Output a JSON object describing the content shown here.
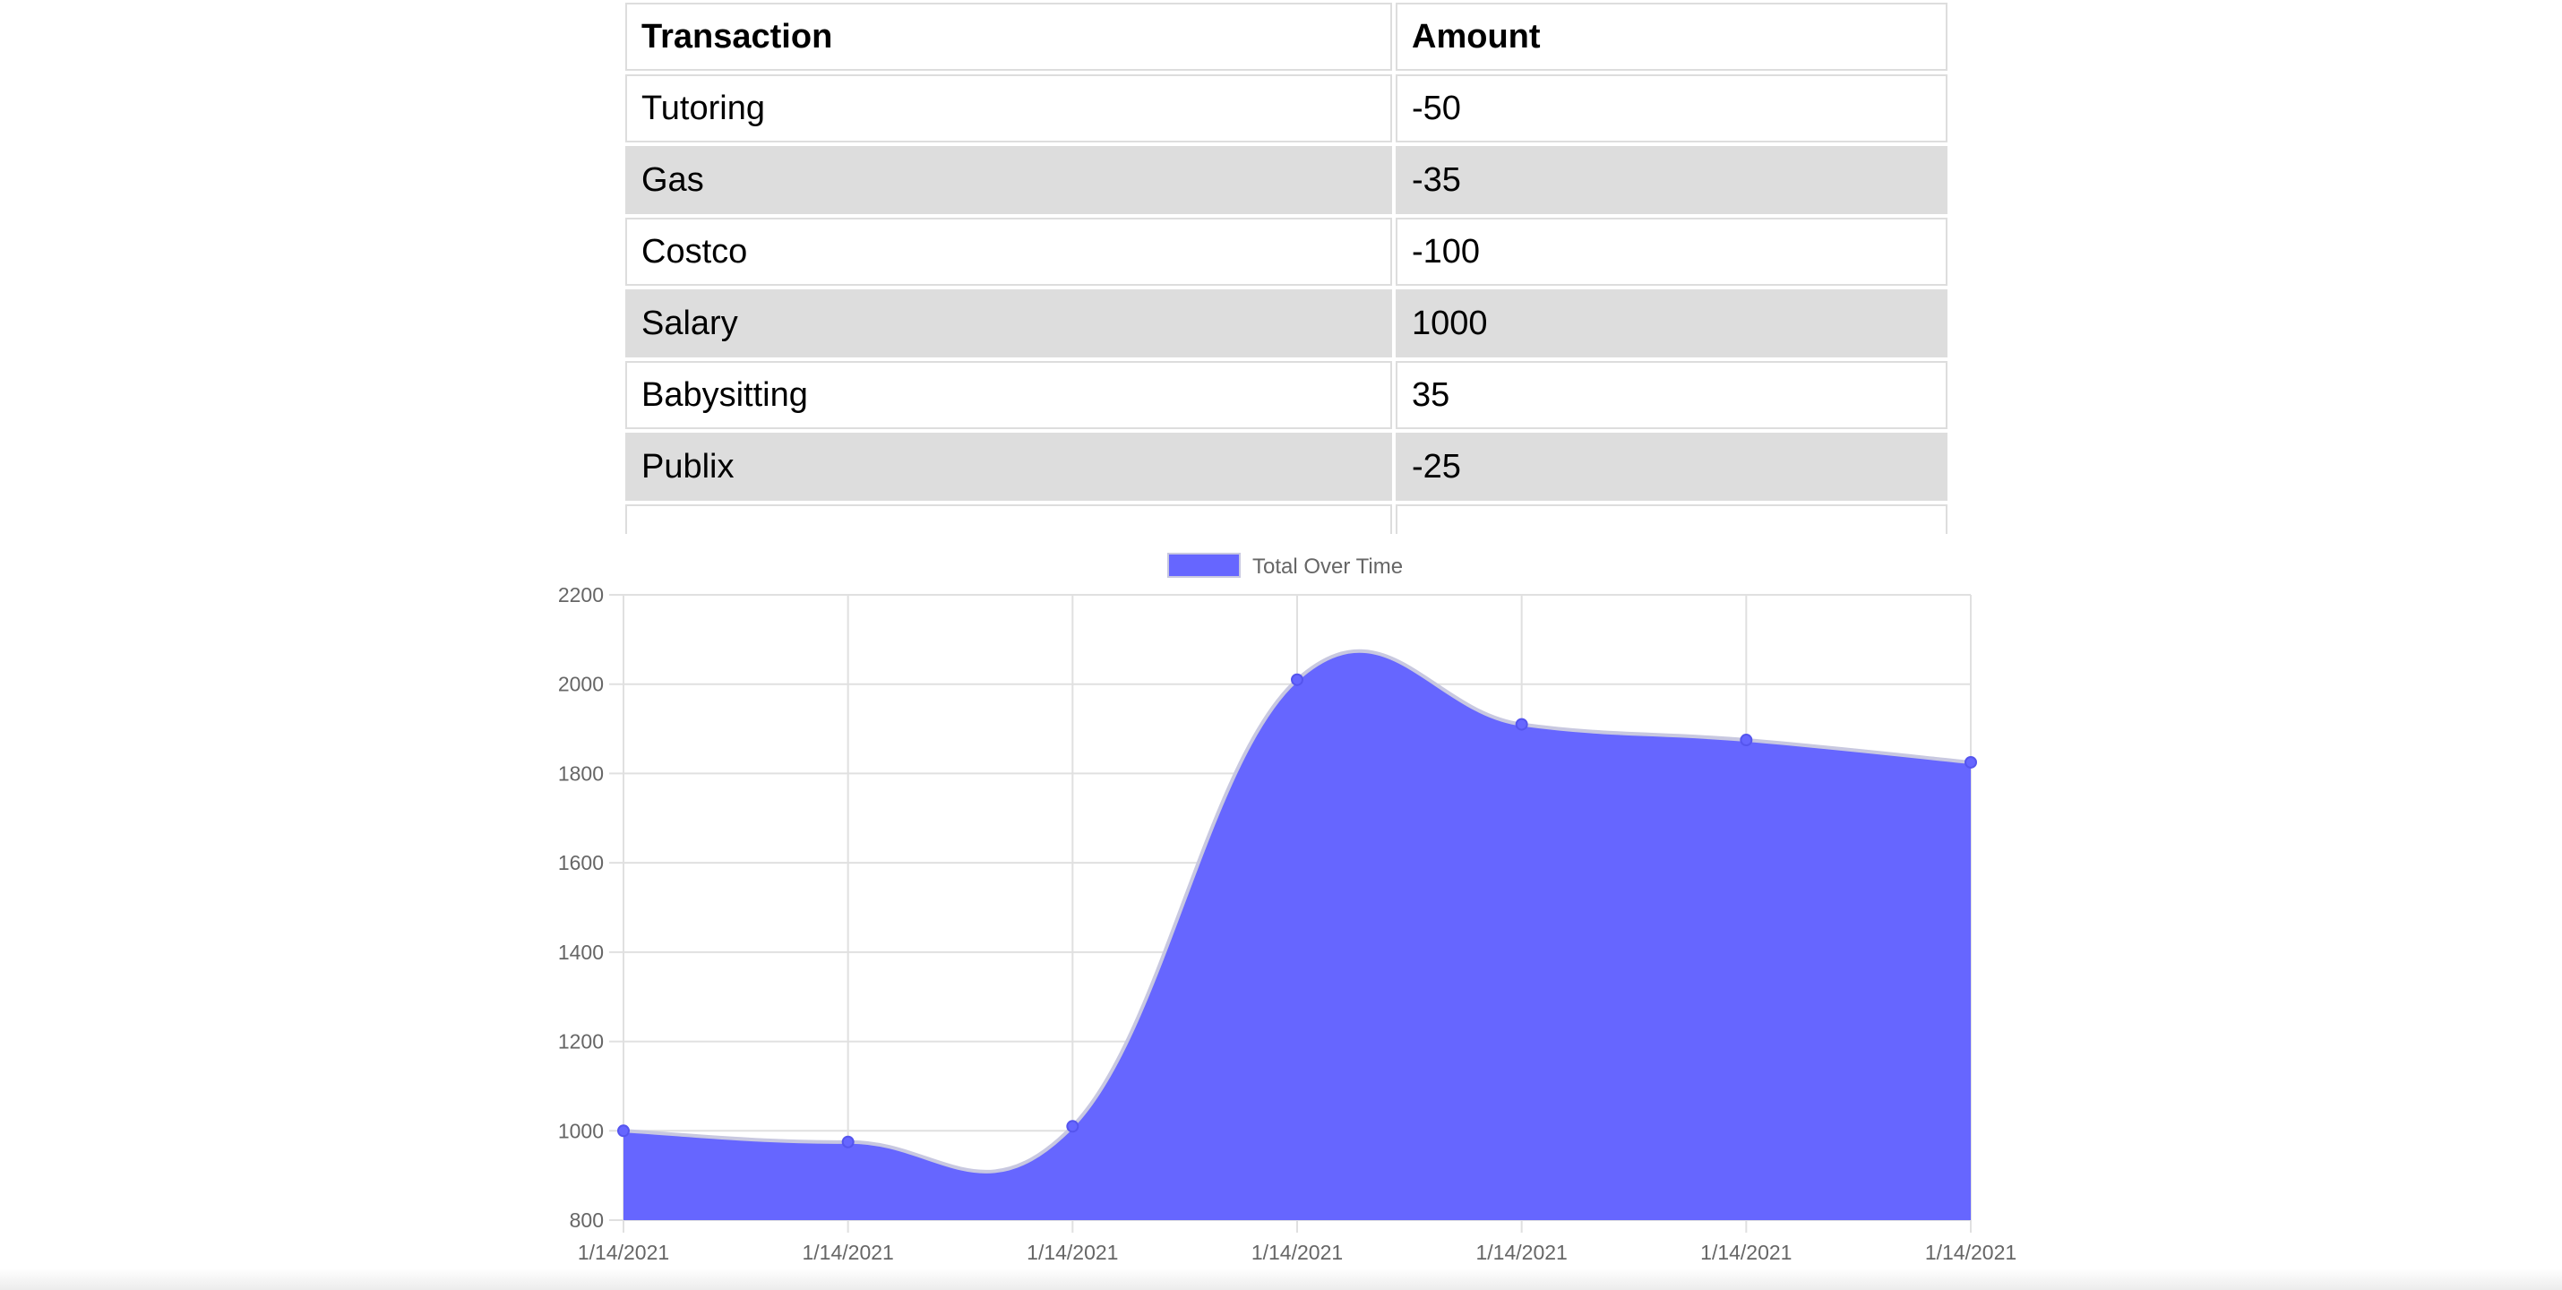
{
  "table": {
    "headers": [
      "Transaction",
      "Amount"
    ],
    "rows": [
      {
        "name": "Tutoring",
        "amount": "-50"
      },
      {
        "name": "Gas",
        "amount": "-35"
      },
      {
        "name": "Costco",
        "amount": "-100"
      },
      {
        "name": "Salary",
        "amount": "1000"
      },
      {
        "name": "Babysitting",
        "amount": "35"
      },
      {
        "name": "Publix",
        "amount": "-25"
      }
    ],
    "row_shade_color": "#dddddd",
    "border_color": "#dddddd"
  },
  "chart_data": {
    "type": "area",
    "x": [
      "1/14/2021",
      "1/14/2021",
      "1/14/2021",
      "1/14/2021",
      "1/14/2021",
      "1/14/2021",
      "1/14/2021"
    ],
    "series": [
      {
        "name": "Total Over Time",
        "values": [
          1000,
          975,
          1010,
          2010,
          1910,
          1875,
          1825
        ],
        "color": "#6666ff"
      }
    ],
    "ylim": [
      800,
      2200
    ],
    "yticks": [
      "800",
      "1000",
      "1200",
      "1400",
      "1600",
      "1800",
      "2000",
      "2200"
    ],
    "grid": true,
    "legend": "top-center",
    "smooth": true
  }
}
